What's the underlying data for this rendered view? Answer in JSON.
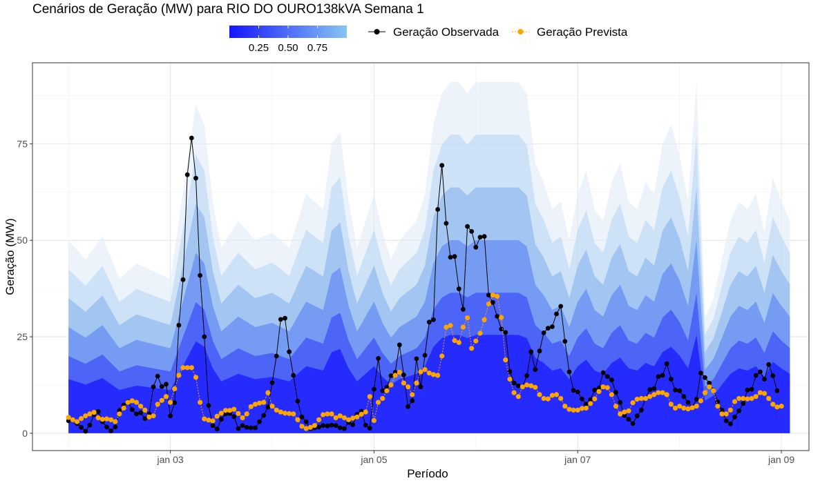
{
  "chart_data": {
    "type": "line",
    "title": "Cenários de Geração (MW) para RIO DO OURO138kVA Semana 1",
    "xlabel": "Período",
    "ylabel": "Geração (MW)",
    "x_ticks": [
      "jan 03",
      "jan 05",
      "jan 07",
      "jan 09"
    ],
    "x_tick_values": [
      24,
      72,
      120,
      168
    ],
    "y_ticks": [
      0,
      25,
      50,
      75
    ],
    "xlim": [
      -8.5,
      174.5
    ],
    "ylim": [
      -4.5,
      96
    ],
    "grid": true,
    "legend_position": "top",
    "colorbar": {
      "ticks": [
        "0.25",
        "0.50",
        "0.75"
      ],
      "tick_values": [
        0.25,
        0.5,
        0.75
      ],
      "range": [
        0,
        1
      ],
      "colors": [
        "#1515ff",
        "#87c4f2"
      ]
    },
    "band_cap": 91,
    "upper_envelope": [
      [
        0,
        50
      ],
      [
        4,
        45
      ],
      [
        8,
        51
      ],
      [
        12,
        40
      ],
      [
        16,
        44
      ],
      [
        20,
        42
      ],
      [
        24,
        40
      ],
      [
        26,
        55
      ],
      [
        28,
        70
      ],
      [
        30,
        85
      ],
      [
        32,
        80
      ],
      [
        34,
        60
      ],
      [
        36,
        48
      ],
      [
        40,
        55
      ],
      [
        44,
        50
      ],
      [
        48,
        52
      ],
      [
        52,
        48
      ],
      [
        56,
        62
      ],
      [
        60,
        58
      ],
      [
        62,
        75
      ],
      [
        64,
        78
      ],
      [
        66,
        60
      ],
      [
        68,
        48
      ],
      [
        72,
        62
      ],
      [
        74,
        52
      ],
      [
        76,
        45
      ],
      [
        78,
        50
      ],
      [
        82,
        55
      ],
      [
        84,
        62
      ],
      [
        86,
        80
      ],
      [
        88,
        88
      ],
      [
        90,
        91
      ],
      [
        92,
        91
      ],
      [
        94,
        88
      ],
      [
        96,
        91
      ],
      [
        98,
        91
      ],
      [
        100,
        91
      ],
      [
        102,
        91
      ],
      [
        104,
        91
      ],
      [
        106,
        91
      ],
      [
        108,
        88
      ],
      [
        110,
        70
      ],
      [
        112,
        65
      ],
      [
        114,
        58
      ],
      [
        116,
        60
      ],
      [
        118,
        50
      ],
      [
        120,
        62
      ],
      [
        122,
        68
      ],
      [
        124,
        58
      ],
      [
        126,
        55
      ],
      [
        128,
        65
      ],
      [
        130,
        70
      ],
      [
        132,
        60
      ],
      [
        134,
        58
      ],
      [
        136,
        65
      ],
      [
        138,
        62
      ],
      [
        140,
        75
      ],
      [
        142,
        80
      ],
      [
        144,
        72
      ],
      [
        146,
        60
      ],
      [
        148,
        91
      ],
      [
        150,
        30
      ],
      [
        152,
        35
      ],
      [
        154,
        45
      ],
      [
        156,
        55
      ],
      [
        158,
        60
      ],
      [
        160,
        58
      ],
      [
        162,
        62
      ],
      [
        164,
        52
      ],
      [
        166,
        66
      ],
      [
        168,
        60
      ],
      [
        170,
        55
      ]
    ],
    "series": [
      {
        "name": "Geração Observada",
        "color": "#000000",
        "values": [
          3.2,
          3.5,
          2.5,
          1.5,
          0.5,
          2.1,
          4.8,
          5.6,
          3.0,
          1.6,
          0.6,
          1.6,
          5.9,
          7.3,
          8.2,
          6.1,
          5.0,
          5.3,
          3.8,
          5.0,
          12.0,
          14.8,
          12.1,
          12.7,
          4.5,
          7.9,
          28.0,
          39.8,
          67.0,
          76.5,
          66.1,
          40.9,
          25.0,
          7.2,
          2.0,
          1.1,
          3.6,
          5.0,
          5.1,
          4.3,
          1.2,
          2.0,
          1.5,
          1.4,
          1.4,
          3.0,
          4.6,
          6.8,
          13.1,
          20.0,
          29.5,
          29.8,
          21.1,
          15.0,
          8.3,
          4.2,
          3.0,
          1.2,
          1.4,
          1.6,
          2.0,
          1.9,
          2.1,
          2.0,
          1.4,
          1.2,
          2.8,
          2.2,
          4.9,
          5.7,
          2.1,
          1.3,
          11.4,
          19.4,
          11.0,
          11.9,
          14.9,
          15.8,
          22.9,
          15.1,
          6.9,
          8.4,
          19.3,
          12.0,
          20.2,
          28.8,
          29.4,
          58.0,
          69.4,
          54.4,
          45.6,
          45.8,
          37.4,
          32.1,
          53.6,
          52.3,
          48.2,
          50.8,
          51.0,
          35.8,
          33.9,
          30.3,
          27.0,
          26.1,
          16.0,
          13.0,
          12.3,
          12.0,
          14.9,
          21.1,
          16.5,
          21.3,
          26.0,
          27.2,
          27.6,
          30.9,
          32.9,
          23.8,
          15.9,
          11.1,
          10.7,
          8.9,
          7.5,
          8.7,
          11.2,
          11.7,
          15.7,
          14.7,
          13.8,
          10.6,
          8.0,
          4.6,
          3.6,
          2.5,
          4.5,
          6.0,
          9.0,
          11.3,
          11.6,
          14.7,
          15.0,
          18.0,
          14.0,
          11.2,
          11.0,
          9.5,
          8.0,
          6.7,
          8.8,
          15.6,
          14.4,
          13.0,
          11.1,
          8.1,
          6.0,
          3.2,
          2.4,
          4.2,
          5.8,
          7.7,
          11.2,
          11.4,
          15.0,
          15.9,
          14.0,
          17.8,
          14.9,
          11.0
        ]
      },
      {
        "name": "Geração Prevista",
        "color": "#ffa500",
        "values": [
          4.1,
          3.5,
          3.0,
          3.8,
          4.5,
          5.0,
          5.4,
          4.0,
          3.6,
          3.7,
          3.5,
          3.0,
          5.0,
          6.5,
          8.0,
          8.4,
          8.0,
          7.0,
          6.0,
          4.2,
          4.5,
          7.5,
          8.5,
          9.5,
          8.0,
          11.5,
          15.0,
          17.0,
          17.0,
          17.0,
          14.5,
          8.0,
          3.7,
          3.4,
          3.2,
          4.4,
          5.2,
          5.9,
          5.9,
          6.2,
          5.1,
          4.0,
          5.0,
          6.9,
          7.5,
          7.8,
          8.0,
          10.5,
          7.0,
          6.0,
          5.5,
          5.2,
          5.1,
          5.0,
          3.5,
          1.8,
          1.2,
          1.5,
          2.0,
          3.5,
          4.8,
          5.0,
          5.0,
          4.0,
          4.5,
          4.0,
          3.5,
          3.9,
          4.2,
          4.9,
          5.5,
          9.5,
          3.3,
          8.0,
          9.0,
          11.0,
          12.5,
          15.0,
          15.8,
          13.0,
          12.0,
          10.0,
          13.0,
          15.9,
          16.5,
          15.6,
          15.2,
          15.0,
          20.0,
          27.5,
          27.9,
          24.0,
          23.5,
          27.5,
          29.9,
          22.0,
          23.9,
          25.9,
          29.4,
          33.5,
          35.8,
          35.5,
          30.0,
          19.0,
          14.0,
          10.5,
          9.5,
          12.0,
          12.5,
          12.3,
          11.9,
          10.0,
          9.0,
          8.9,
          9.8,
          10.0,
          9.0,
          7.0,
          6.2,
          6.0,
          6.0,
          6.4,
          6.5,
          7.7,
          8.9,
          10.8,
          12.0,
          11.8,
          10.0,
          7.0,
          5.0,
          5.5,
          5.8,
          7.9,
          8.8,
          9.0,
          9.0,
          9.5,
          10.0,
          10.5,
          10.5,
          10.0,
          7.5,
          6.5,
          7.0,
          6.5,
          6.3,
          6.6,
          7.0,
          8.4,
          10.5,
          12.0,
          11.0,
          7.0,
          5.0,
          5.0,
          6.0,
          8.2,
          9.0,
          9.0,
          8.9,
          9.0,
          9.5,
          10.5,
          10.3,
          9.0,
          7.5,
          6.8,
          7.0
        ]
      }
    ]
  }
}
